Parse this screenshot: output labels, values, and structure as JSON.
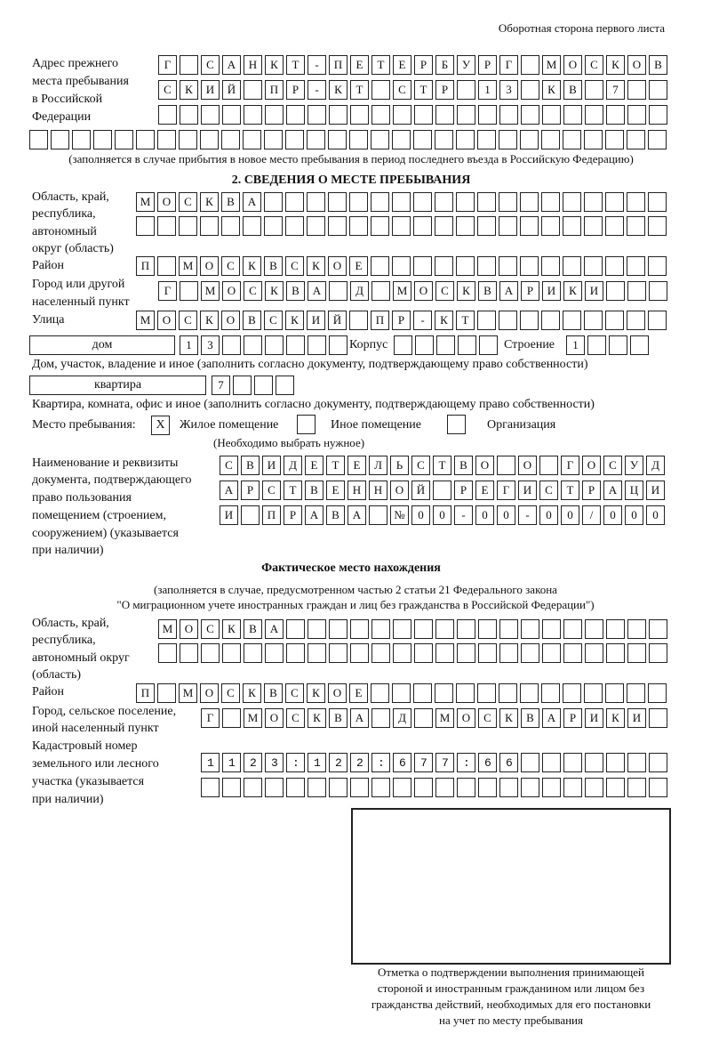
{
  "header": "Оборотная сторона первого листа",
  "previous_address": {
    "label": [
      "Адрес прежнего",
      "места пребывания",
      "в Российской",
      "Федерации"
    ],
    "rows": [
      "Г САНКТ-ПЕТЕРБУРГ МОСКОВ",
      "СКИЙ ПР-КТ СТР 13 КВ 7",
      "",
      ""
    ],
    "note": "(заполняется в случае прибытия в новое место пребывания в период последнего въезда в Российскую Федерацию)"
  },
  "section2": {
    "title": "2. СВЕДЕНИЯ О МЕСТЕ ПРЕБЫВАНИЯ",
    "region_label": [
      "Область, край,",
      "республика,",
      "автономный",
      "округ (область)"
    ],
    "region_rows": [
      "МОСКВА",
      ""
    ],
    "district_label": "Район",
    "district": "П МОСКВСКОЕ",
    "city_label": [
      "Город или другой",
      "населенный пункт"
    ],
    "city": "Г МОСКВА Д МОСКВАРИКИ",
    "street_label": "Улица",
    "street": "МОСКОВСКИЙ ПР-КТ",
    "house_type": "дом",
    "house": "13",
    "korpus_label": "Корпус",
    "korpus": "",
    "building_label": "Строение",
    "building": "1",
    "house_caption": "Дом, участок, владение и иное (заполнить согласно документу, подтверждающему право собственности)",
    "flat_type": "квартира",
    "flat": "7",
    "flat_caption": "Квартира, комната, офис и иное (заполнить согласно документу, подтверждающему право собственности)",
    "stay_label": "Место пребывания:",
    "stay_options": [
      {
        "label": "Жилое помещение",
        "mark": "X"
      },
      {
        "label": "Иное помещение",
        "mark": ""
      },
      {
        "label": "Организация",
        "mark": ""
      }
    ],
    "stay_hint": "(Необходимо выбрать нужное)",
    "doc_label": [
      "Наименование и реквизиты",
      "документа, подтверждающего",
      "право пользования",
      "помещением (строением,",
      "сооружением) (указывается",
      "при наличии)"
    ],
    "doc_rows": [
      "СВИДЕТЕЛЬСТВО О ГОСУД",
      "АРСТВЕННОЙ РЕГИСТРАЦИ",
      "И ПРАВА №00-00-00/000"
    ]
  },
  "actual": {
    "title": "Фактическое место нахождения",
    "note": [
      "(заполняется в случае, предусмотренном частью 2 статьи 21 Федерального закона",
      "\"О миграционном учете иностранных граждан и лиц без гражданства в Российской Федерации\")"
    ],
    "region_label": [
      "Область, край,",
      "республика,",
      "автономный округ",
      "(область)"
    ],
    "region_rows": [
      "МОСКВА",
      ""
    ],
    "district_label": "Район",
    "district": "П МОСКВСКОЕ",
    "city_label": [
      "Город, сельское поселение,",
      "иной населенный пункт"
    ],
    "city": "Г МОСКВА Д МОСКВАРИКИ",
    "cadastre_label": [
      "Кадастровый номер",
      "земельного или лесного",
      "участка (указывается",
      "при наличии)"
    ],
    "cadastre_rows": [
      "1123:122:677:66",
      ""
    ]
  },
  "confirmation_caption": [
    "Отметка о подтверждении выполнения принимающей",
    "стороной и иностранным гражданином или лицом без",
    "гражданства действий, необходимых для его постановки",
    "на учет по месту пребывания"
  ]
}
